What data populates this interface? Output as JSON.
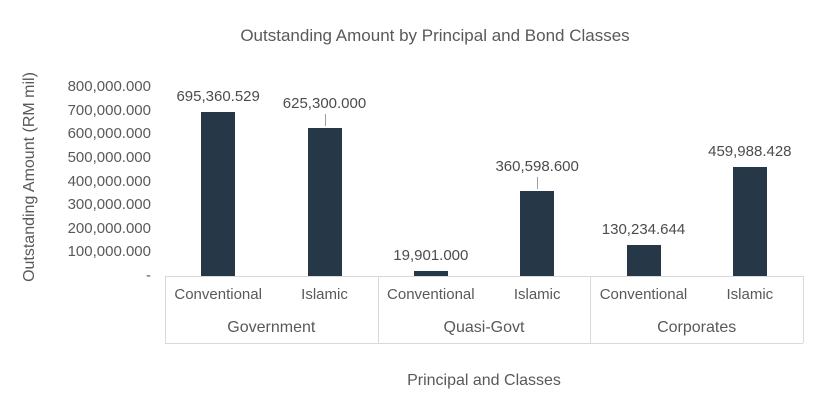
{
  "title": "Outstanding Amount by Principal and Bond Classes",
  "colors": {
    "bar": "#263848",
    "text": "#595959",
    "data_label": "#4c4c4c",
    "border": "#d9d9d9",
    "leader_line": "#9e9e9e",
    "background": "#ffffff"
  },
  "chart_data": {
    "type": "bar",
    "title": "Outstanding Amount by Principal and Bond Classes",
    "xlabel": "Principal and Classes",
    "ylabel": "Outstanding Amount (RM mil)",
    "ylim": [
      0,
      800000
    ],
    "ytick_step": 100000,
    "grid": false,
    "legend": false,
    "yticks": [
      {
        "value": 0,
        "label": "-"
      },
      {
        "value": 100000,
        "label": "100,000.000"
      },
      {
        "value": 200000,
        "label": "200,000.000"
      },
      {
        "value": 300000,
        "label": "300,000.000"
      },
      {
        "value": 400000,
        "label": "400,000.000"
      },
      {
        "value": 500000,
        "label": "500,000.000"
      },
      {
        "value": 600000,
        "label": "600,000.000"
      },
      {
        "value": 700000,
        "label": "700,000.000"
      },
      {
        "value": 800000,
        "label": "800,000.000"
      }
    ],
    "groups": [
      {
        "name": "Government",
        "items": [
          {
            "category": "Conventional",
            "value": 695360.529,
            "label": "695,360.529",
            "leader": false
          },
          {
            "category": "Islamic",
            "value": 625300.0,
            "label": "625,300.000",
            "leader": true
          }
        ]
      },
      {
        "name": "Quasi-Govt",
        "items": [
          {
            "category": "Conventional",
            "value": 19901.0,
            "label": "19,901.000",
            "leader": false
          },
          {
            "category": "Islamic",
            "value": 360598.6,
            "label": "360,598.600",
            "leader": true
          }
        ]
      },
      {
        "name": "Corporates",
        "items": [
          {
            "category": "Conventional",
            "value": 130234.644,
            "label": "130,234.644",
            "leader": false
          },
          {
            "category": "Islamic",
            "value": 459988.428,
            "label": "459,988.428",
            "leader": false
          }
        ]
      }
    ]
  }
}
